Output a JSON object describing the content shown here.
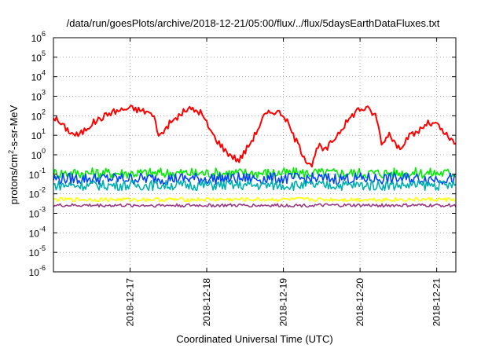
{
  "chart_data": {
    "type": "line",
    "title": "/data/run/goesPlots/archive/2018-12-21/05:00/flux/../flux/5daysEarthDataFluxes.txt",
    "xlabel": "Coordinated Universal Time (UTC)",
    "ylabel_parts": [
      "protons/cm",
      "2",
      "-s-sr-MeV"
    ],
    "y_scale": "log",
    "ylim": [
      1e-06,
      1000000.0
    ],
    "xlim_days": [
      "2018-12-16 00:00",
      "2018-12-21 06:00"
    ],
    "x_ticks": [
      "2018-12-17",
      "2018-12-18",
      "2018-12-19",
      "2018-12-20",
      "2018-12-21"
    ],
    "y_ticks": [
      {
        "base": "10",
        "exp": "-6"
      },
      {
        "base": "10",
        "exp": "-5"
      },
      {
        "base": "10",
        "exp": "-4"
      },
      {
        "base": "10",
        "exp": "-3"
      },
      {
        "base": "10",
        "exp": "-2"
      },
      {
        "base": "10",
        "exp": "-1"
      },
      {
        "base": "10",
        "exp": "0"
      },
      {
        "base": "10",
        "exp": "1"
      },
      {
        "base": "10",
        "exp": "2"
      },
      {
        "base": "10",
        "exp": "3"
      },
      {
        "base": "10",
        "exp": "4"
      },
      {
        "base": "10",
        "exp": "5"
      },
      {
        "base": "10",
        "exp": "6"
      }
    ],
    "grid": true,
    "series": [
      {
        "color": "#ff0000",
        "x": [
          "2018-12-16 00:00",
          "2018-12-16 03:00",
          "2018-12-16 06:00",
          "2018-12-16 08:00",
          "2018-12-16 12:00",
          "2018-12-16 18:00",
          "2018-12-17 00:00",
          "2018-12-17 06:00",
          "2018-12-17 08:00",
          "2018-12-17 09:00",
          "2018-12-17 12:00",
          "2018-12-17 18:00",
          "2018-12-17 22:00",
          "2018-12-18 02:00",
          "2018-12-18 06:00",
          "2018-12-18 10:00",
          "2018-12-18 12:00",
          "2018-12-18 15:00",
          "2018-12-18 18:00",
          "2018-12-18 21:00",
          "2018-12-19 00:00",
          "2018-12-19 04:00",
          "2018-12-19 07:00",
          "2018-12-19 09:00",
          "2018-12-19 11:00",
          "2018-12-19 13:00",
          "2018-12-19 18:00",
          "2018-12-19 23:00",
          "2018-12-20 02:00",
          "2018-12-20 05:00",
          "2018-12-20 07:00",
          "2018-12-20 09:00",
          "2018-12-20 12:00",
          "2018-12-20 15:00",
          "2018-12-20 18:00",
          "2018-12-20 21:00",
          "2018-12-21 00:00",
          "2018-12-21 03:00",
          "2018-12-21 06:00"
        ],
        "y": [
          90,
          30,
          12,
          10,
          40,
          150,
          250,
          150,
          60,
          8,
          35,
          230,
          160,
          10,
          1.5,
          0.5,
          1.5,
          10,
          100,
          180,
          120,
          5,
          0.6,
          0.3,
          3,
          1.5,
          20,
          200,
          250,
          100,
          3,
          15,
          2,
          8,
          15,
          40,
          35,
          10,
          3
        ]
      },
      {
        "color": "#00ee00",
        "band": [
          0.06,
          0.22
        ]
      },
      {
        "color": "#0044ff",
        "band": [
          0.03,
          0.12
        ]
      },
      {
        "color": "#00b0b0",
        "band": [
          0.015,
          0.05
        ]
      },
      {
        "color": "#ffff00",
        "band": [
          0.004,
          0.0065
        ]
      },
      {
        "color": "#993d80",
        "band": [
          0.0021,
          0.0031
        ]
      }
    ]
  }
}
